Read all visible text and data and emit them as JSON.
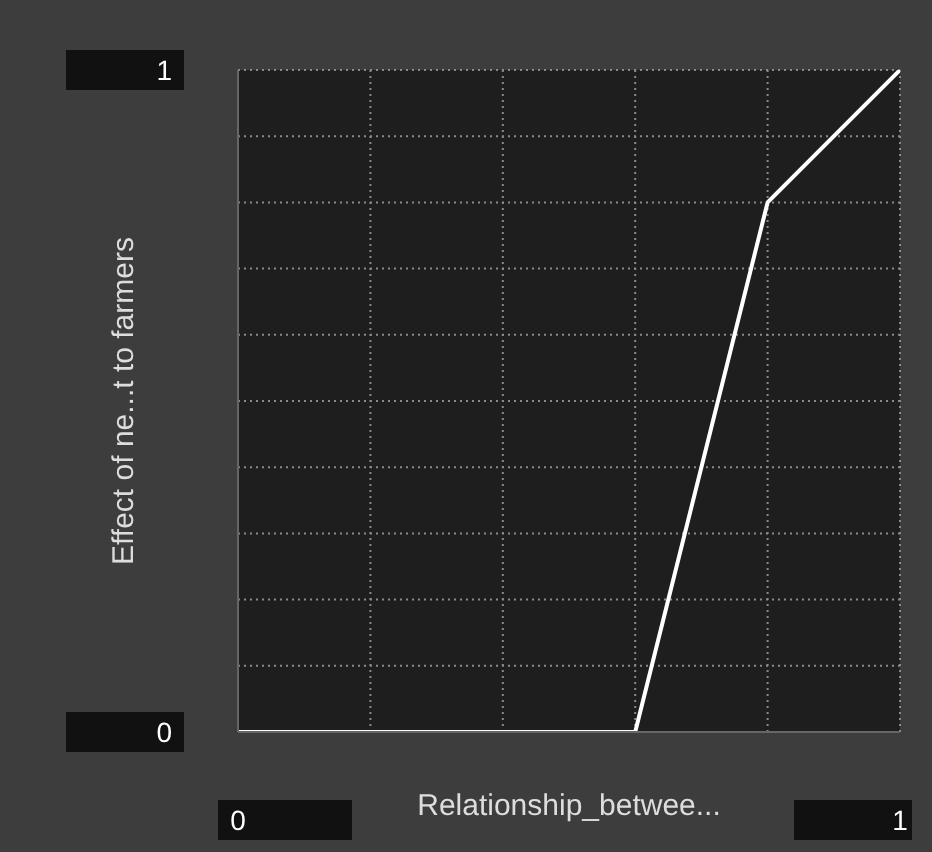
{
  "chart_data": {
    "type": "line",
    "xlabel": "Relationship_betwee...",
    "ylabel": "Effect of ne...t to farmers",
    "x": [
      0,
      0.2,
      0.4,
      0.6,
      0.8,
      1
    ],
    "series": [
      {
        "color": "#ffffff",
        "values": [
          0,
          0,
          0,
          0,
          0.8,
          1
        ]
      }
    ],
    "xlim": [
      0,
      1
    ],
    "ylim": [
      0,
      1
    ],
    "xticks": [
      0,
      {
        "value": 0.2,
        "label": null
      },
      {
        "value": 0.4,
        "label": null
      },
      {
        "value": 0.6,
        "label": null
      },
      {
        "value": 0.8,
        "label": null
      },
      1
    ],
    "yticks": [
      0,
      {
        "value": 0.1,
        "label": null
      },
      {
        "value": 0.2,
        "label": null
      },
      {
        "value": 0.3,
        "label": null
      },
      {
        "value": 0.4,
        "label": null
      },
      {
        "value": 0.5,
        "label": null
      },
      {
        "value": 0.6,
        "label": null
      },
      {
        "value": 0.7,
        "label": null
      },
      {
        "value": 0.8,
        "label": null
      },
      {
        "value": 0.9,
        "label": null
      },
      1
    ],
    "grid": true,
    "marker": "none",
    "line_style": "solid"
  }
}
